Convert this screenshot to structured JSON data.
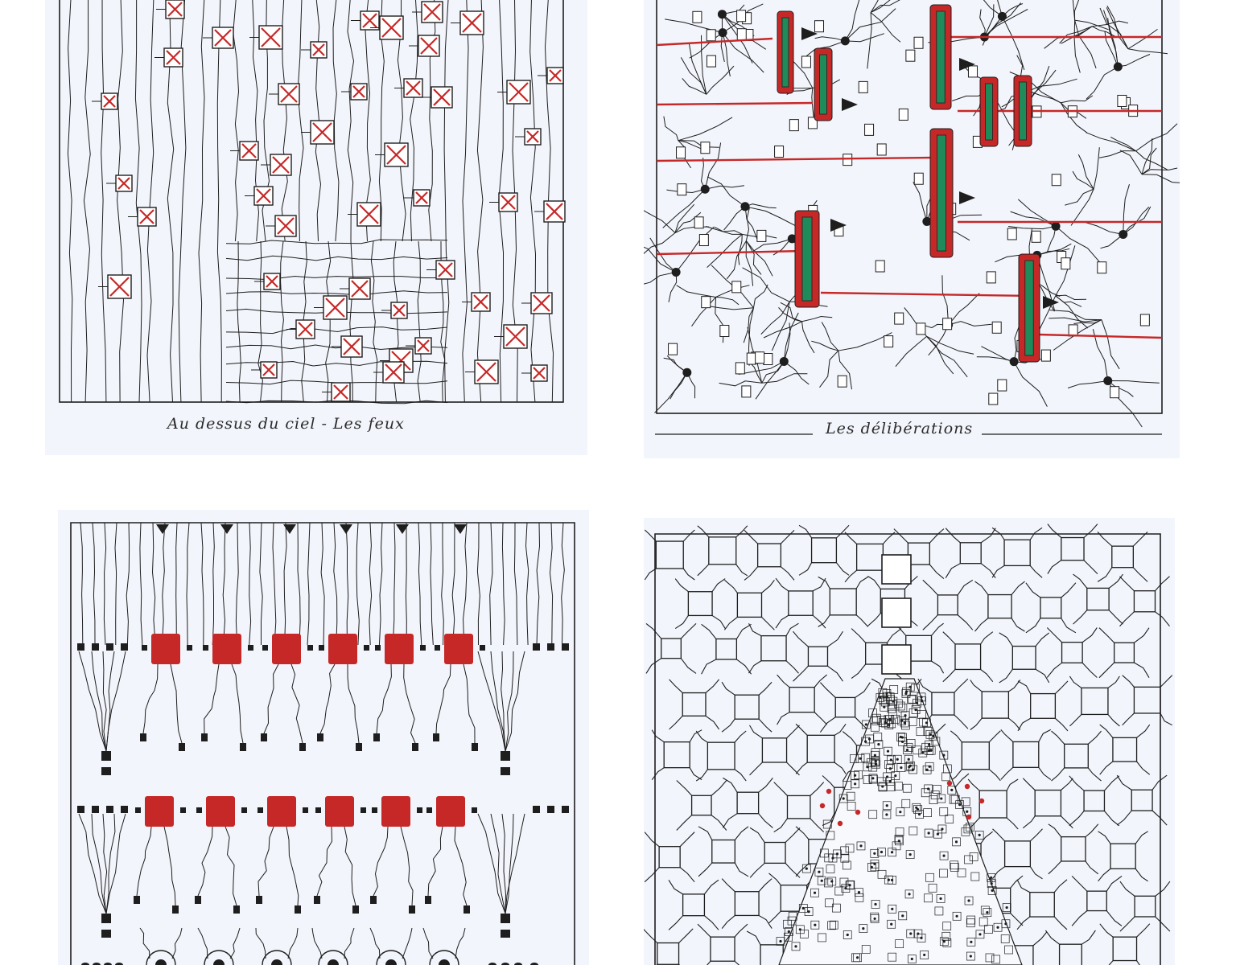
{
  "panels": [
    {
      "id": "top-left",
      "caption": "Au dessus  du ciel - Les feux"
    },
    {
      "id": "top-right",
      "caption": "Les délibérations"
    },
    {
      "id": "bottom-left",
      "caption": ""
    },
    {
      "id": "bottom-right",
      "caption": ""
    }
  ],
  "colors": {
    "paper": "#f2f5fb",
    "ink": "#1e1e1e",
    "red": "#c62828",
    "green": "#1f8a5a"
  }
}
